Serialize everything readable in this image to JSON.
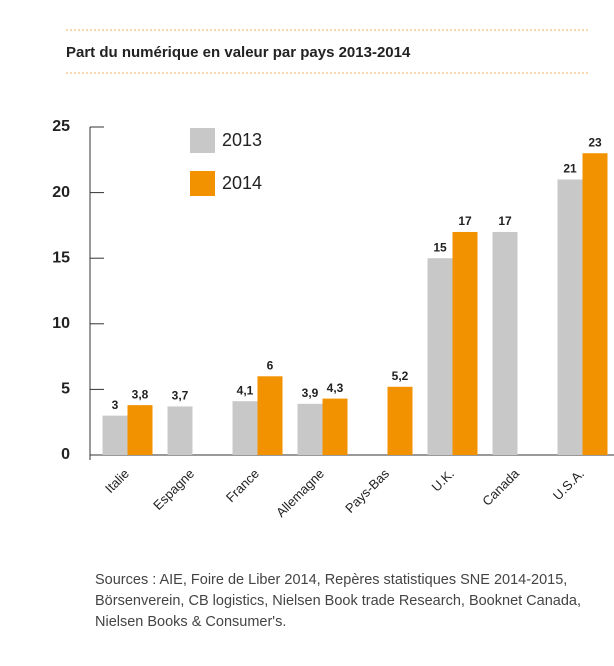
{
  "chart_data": {
    "type": "bar",
    "title": "Part du numérique en valeur par pays 2013-2014",
    "categories": [
      "Italie",
      "Espagne",
      "France",
      "Allemagne",
      "Pays-Bas",
      "U.K.",
      "Canada",
      "U.S.A."
    ],
    "series": [
      {
        "name": "2013",
        "color": "#c8c8c8",
        "values": [
          3,
          3.7,
          4.1,
          3.9,
          null,
          15,
          17,
          21
        ],
        "value_labels": [
          "3",
          "3,7",
          "4,1",
          "3,9",
          null,
          "15",
          "17",
          "21"
        ]
      },
      {
        "name": "2014",
        "color": "#f39200",
        "values": [
          3.8,
          null,
          6,
          4.3,
          5.2,
          17,
          null,
          23
        ],
        "value_labels": [
          "3,8",
          null,
          "6",
          "4,3",
          "5,2",
          "17",
          null,
          "23"
        ]
      }
    ],
    "ylim": [
      0,
      25
    ],
    "yticks": [
      0,
      5,
      10,
      15,
      20,
      25
    ],
    "source": "Sources : AIE, Foire de Liber 2014, Repères statistiques SNE 2014-2015, Börsenverein, CB logistics, Nielsen Book trade Research, Booknet Canada, Nielsen Books & Consumer's."
  }
}
